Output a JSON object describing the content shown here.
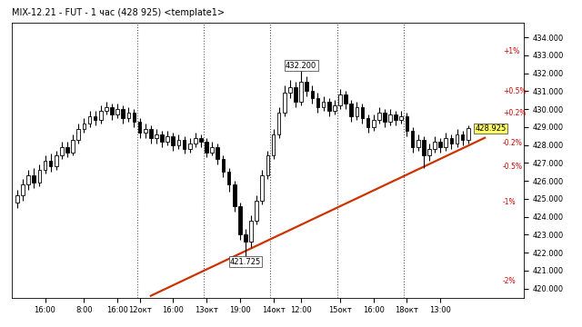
{
  "chart_data": {
    "type": "candlestick",
    "title": "MIX-12.21 - FUT - 1 час (428 925) <template1>",
    "color": "#000000",
    "grid": false,
    "categories": [
      null,
      null,
      null,
      null,
      null,
      "16:00",
      null,
      null,
      null,
      null,
      null,
      null,
      "8:00",
      null,
      null,
      null,
      null,
      null,
      "16:00",
      null,
      null,
      null,
      "12окт",
      null,
      null,
      null,
      null,
      null,
      "16:00",
      null,
      null,
      null,
      null,
      null,
      "13окт",
      null,
      null,
      null,
      null,
      null,
      "19:00",
      null,
      null,
      null,
      null,
      null,
      "14окт",
      null,
      null,
      null,
      null,
      "12:00",
      null,
      null,
      null,
      null,
      null,
      null,
      "15окт",
      null,
      null,
      null,
      null,
      null,
      "16:00",
      null,
      null,
      null,
      null,
      null,
      "18окт",
      null,
      null,
      null,
      null,
      null,
      "13:00",
      null,
      null,
      null,
      null,
      null
    ],
    "open": [
      424.8,
      425.2,
      425.8,
      426.3,
      425.9,
      426.6,
      427.1,
      426.8,
      427.4,
      427.9,
      427.6,
      428.3,
      428.9,
      429.2,
      429.6,
      429.4,
      429.9,
      430.1,
      429.7,
      430.0,
      429.5,
      429.8,
      429.3,
      428.7,
      428.9,
      428.4,
      428.6,
      428.2,
      428.5,
      428.0,
      428.3,
      427.8,
      428.1,
      428.4,
      428.2,
      427.6,
      427.9,
      427.2,
      426.5,
      425.8,
      424.6,
      423.0,
      422.6,
      423.8,
      424.9,
      426.3,
      427.4,
      428.6,
      429.8,
      430.9,
      431.2,
      430.4,
      431.5,
      431.0,
      430.6,
      430.1,
      430.4,
      429.9,
      430.2,
      430.8,
      430.3,
      429.6,
      430.1,
      429.5,
      429.0,
      429.4,
      429.8,
      429.3,
      429.7,
      429.4,
      429.6,
      428.8,
      427.9,
      428.3,
      427.4,
      427.8,
      428.2,
      427.9,
      428.4,
      428.1,
      428.6,
      428.3
    ],
    "high": [
      425.5,
      426.1,
      426.6,
      426.7,
      426.9,
      427.4,
      427.5,
      427.7,
      428.2,
      428.2,
      428.6,
      429.2,
      429.5,
      429.9,
      429.9,
      430.2,
      430.4,
      430.3,
      430.3,
      430.2,
      430.1,
      430.0,
      429.5,
      429.2,
      429.1,
      428.9,
      428.8,
      428.8,
      428.7,
      428.6,
      428.5,
      428.4,
      428.7,
      428.6,
      428.4,
      428.2,
      428.1,
      427.4,
      426.7,
      426.0,
      424.8,
      423.3,
      424.1,
      425.2,
      426.6,
      427.7,
      428.9,
      430.1,
      431.3,
      431.6,
      431.5,
      432.2,
      431.8,
      431.3,
      430.9,
      430.7,
      430.6,
      430.5,
      431.1,
      431.0,
      430.5,
      430.4,
      430.3,
      429.7,
      429.7,
      430.1,
      430.0,
      430.0,
      429.9,
      429.9,
      429.8,
      429.0,
      428.6,
      428.5,
      428.1,
      428.5,
      428.4,
      428.7,
      428.6,
      428.9,
      428.8,
      429.1
    ],
    "low": [
      424.5,
      424.9,
      425.5,
      425.6,
      425.7,
      426.4,
      426.5,
      426.6,
      427.2,
      427.3,
      427.4,
      428.1,
      428.7,
      429.0,
      429.1,
      429.2,
      429.7,
      429.4,
      429.5,
      429.2,
      429.3,
      429.0,
      428.4,
      428.4,
      428.1,
      428.1,
      427.9,
      428.0,
      427.7,
      427.8,
      427.5,
      427.6,
      427.9,
      427.9,
      427.3,
      427.4,
      426.9,
      426.2,
      425.4,
      424.3,
      422.7,
      421.725,
      422.3,
      423.6,
      424.7,
      426.1,
      427.2,
      428.4,
      429.6,
      430.6,
      430.1,
      430.2,
      430.7,
      430.3,
      429.8,
      429.9,
      429.6,
      429.7,
      430.0,
      430.0,
      429.3,
      429.4,
      429.2,
      428.7,
      428.8,
      429.2,
      429.0,
      429.1,
      429.1,
      429.2,
      428.5,
      427.6,
      427.7,
      426.7,
      427.1,
      427.6,
      427.6,
      427.7,
      427.8,
      427.9,
      428.0,
      428.1
    ],
    "close": [
      425.2,
      425.8,
      426.3,
      425.9,
      426.6,
      427.1,
      426.8,
      427.4,
      427.9,
      427.6,
      428.3,
      428.9,
      429.2,
      429.6,
      429.4,
      429.9,
      430.1,
      429.7,
      430.0,
      429.5,
      429.8,
      429.3,
      428.7,
      428.9,
      428.4,
      428.6,
      428.2,
      428.5,
      428.0,
      428.3,
      427.8,
      428.1,
      428.4,
      428.2,
      427.6,
      427.9,
      427.2,
      426.5,
      425.8,
      424.6,
      423.0,
      422.6,
      423.8,
      424.9,
      426.3,
      427.4,
      428.6,
      429.8,
      430.9,
      431.2,
      430.4,
      431.5,
      431.0,
      430.6,
      430.1,
      430.4,
      429.9,
      430.2,
      430.8,
      430.3,
      429.6,
      430.1,
      429.5,
      429.0,
      429.4,
      429.8,
      429.3,
      429.7,
      429.4,
      429.6,
      428.8,
      427.9,
      428.3,
      427.4,
      427.8,
      428.2,
      427.9,
      428.4,
      428.1,
      428.6,
      428.3,
      428.925
    ],
    "ylim": [
      419.5,
      434.8
    ],
    "yticks": [
      {
        "value": 420,
        "label": "420.000"
      },
      {
        "value": 421,
        "label": "421.000"
      },
      {
        "value": 422,
        "label": "422.000"
      },
      {
        "value": 423,
        "label": "423.000"
      },
      {
        "value": 424,
        "label": "424.000"
      },
      {
        "value": 425,
        "label": "425.000"
      },
      {
        "value": 426,
        "label": "426.000"
      },
      {
        "value": 427,
        "label": "427.000"
      },
      {
        "value": 428,
        "label": "428.000"
      },
      {
        "value": 429,
        "label": "429.000"
      },
      {
        "value": 430,
        "label": "430.000"
      },
      {
        "value": 431,
        "label": "431.000"
      },
      {
        "value": 432,
        "label": "432.000"
      },
      {
        "value": 433,
        "label": "433.000"
      },
      {
        "value": 434,
        "label": "434.000"
      }
    ],
    "trend_line": {
      "x": [
        24,
        84
      ],
      "y": [
        419.6,
        428.4
      ],
      "color": "#cc3300"
    },
    "annotations": [
      {
        "text": "432.200",
        "x": 51,
        "y": 432.2
      },
      {
        "text": "421.725",
        "x": 41,
        "y": 421.725
      }
    ],
    "last_price": {
      "value": 428.925,
      "label": "428.925",
      "color": "#ffff66"
    },
    "levels": {
      "color": "#cc0000",
      "items": [
        {
          "label": "+1%",
          "value": 433.2
        },
        {
          "label": "+0.5%",
          "value": 431.0
        },
        {
          "label": "+0.2%",
          "value": 429.8
        },
        {
          "label": "-0.2%",
          "value": 428.1
        },
        {
          "label": "-0.5%",
          "value": 426.8
        },
        {
          "label": "-1%",
          "value": 424.8
        },
        {
          "label": "-2%",
          "value": 420.4
        }
      ]
    }
  }
}
